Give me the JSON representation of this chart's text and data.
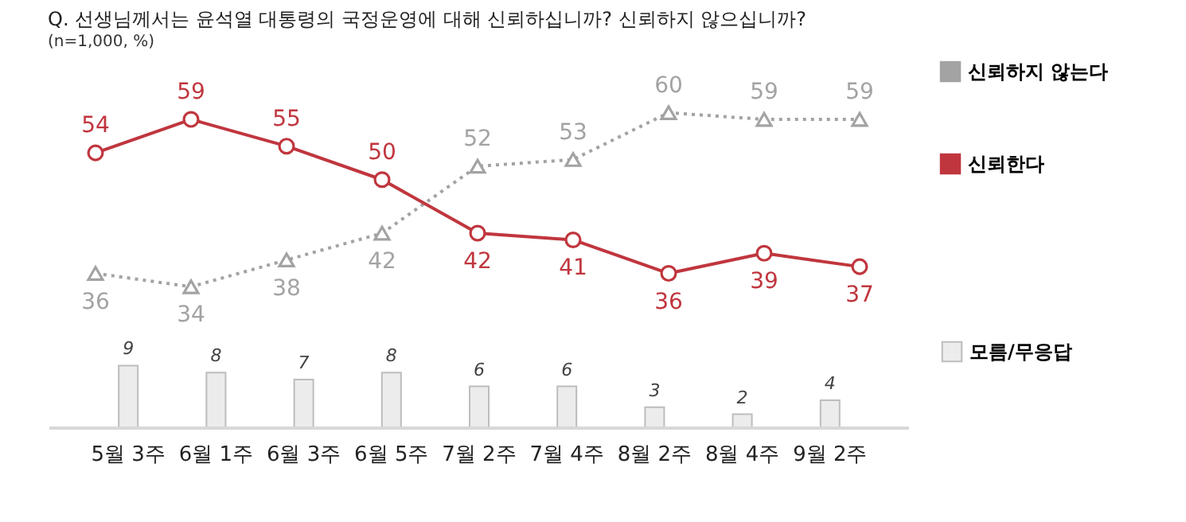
{
  "chart_data": [
    {
      "type": "line",
      "title": "Q. 선생님께서는 윤석열 대통령의 국정운영에 대해 신뢰하십니까? 신뢰하지 않으십니까?",
      "annotations": [
        "(n=1,000, %)"
      ],
      "categories": [
        null,
        null,
        null,
        null,
        null,
        null,
        null,
        null,
        null
      ],
      "series": [
        {
          "name": "신뢰하지 않는다",
          "color": "#a3a3a3",
          "marker": "triangle",
          "line_style": "dotted",
          "values": [
            36,
            34,
            38,
            42,
            52,
            53,
            60,
            59,
            59
          ]
        },
        {
          "name": "신뢰한다",
          "color": "#c0363e",
          "marker": "circle",
          "line_style": "solid",
          "values": [
            54,
            59,
            55,
            50,
            42,
            41,
            36,
            39,
            37
          ]
        }
      ],
      "data_labels": true,
      "legend": "right",
      "tick_labels": false
    },
    {
      "type": "bar",
      "categories": [
        "5월 3주",
        "6월 1주",
        "6월 3주",
        "6월 5주",
        "7월 2주",
        "7월 4주",
        "8월 2주",
        "8월 4주",
        "9월 2주"
      ],
      "series": [
        {
          "name": "모름/무응답",
          "color": "#ececec",
          "values": [
            9,
            8,
            7,
            8,
            6,
            6,
            3,
            2,
            4
          ]
        }
      ],
      "data_labels": true,
      "legend": "right",
      "tick_labels": "x"
    }
  ]
}
